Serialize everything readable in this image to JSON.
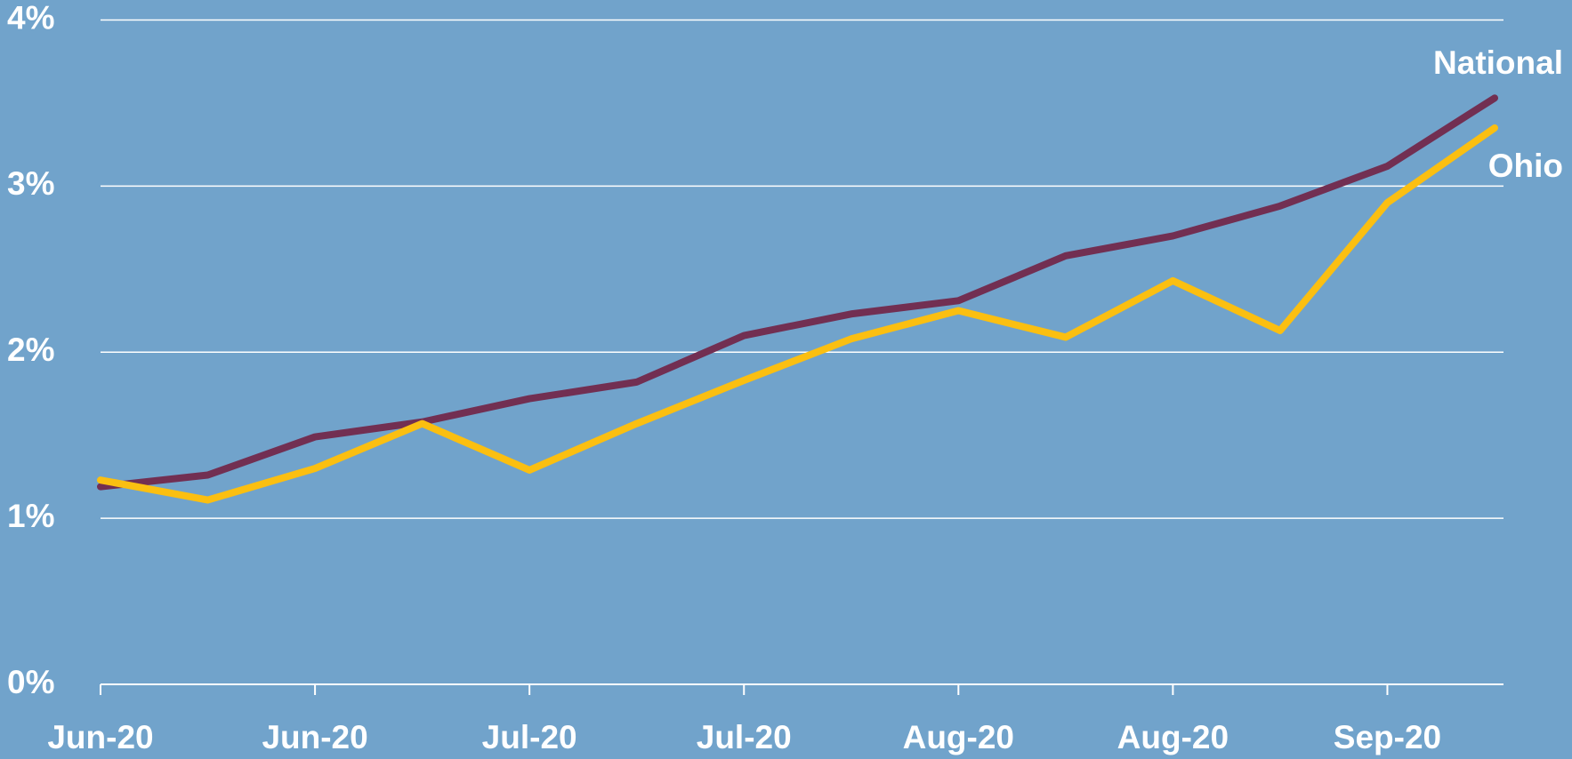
{
  "chart_data": {
    "type": "line",
    "categories": [
      "Jun-20",
      null,
      "Jun-20",
      null,
      "Jul-20",
      null,
      "Jul-20",
      null,
      "Aug-20",
      null,
      "Aug-20",
      null,
      "Sep-20",
      null
    ],
    "series": [
      {
        "name": "National",
        "color": "#722f52",
        "values": [
          1.19,
          1.26,
          1.49,
          1.58,
          1.72,
          1.82,
          2.1,
          2.23,
          2.31,
          2.58,
          2.7,
          2.88,
          3.12,
          3.53
        ]
      },
      {
        "name": "Ohio",
        "color": "#fbbf11",
        "values": [
          1.23,
          1.11,
          1.3,
          1.57,
          1.29,
          1.57,
          1.83,
          2.08,
          2.25,
          2.09,
          2.43,
          2.13,
          2.9,
          3.35
        ]
      }
    ],
    "ylim": [
      0,
      4
    ],
    "yticks": [
      {
        "value": 0,
        "label": "0%"
      },
      {
        "value": 1,
        "label": "1%"
      },
      {
        "value": 2,
        "label": "2%"
      },
      {
        "value": 3,
        "label": "3%"
      },
      {
        "value": 4,
        "label": "4%"
      }
    ],
    "grid": true
  }
}
